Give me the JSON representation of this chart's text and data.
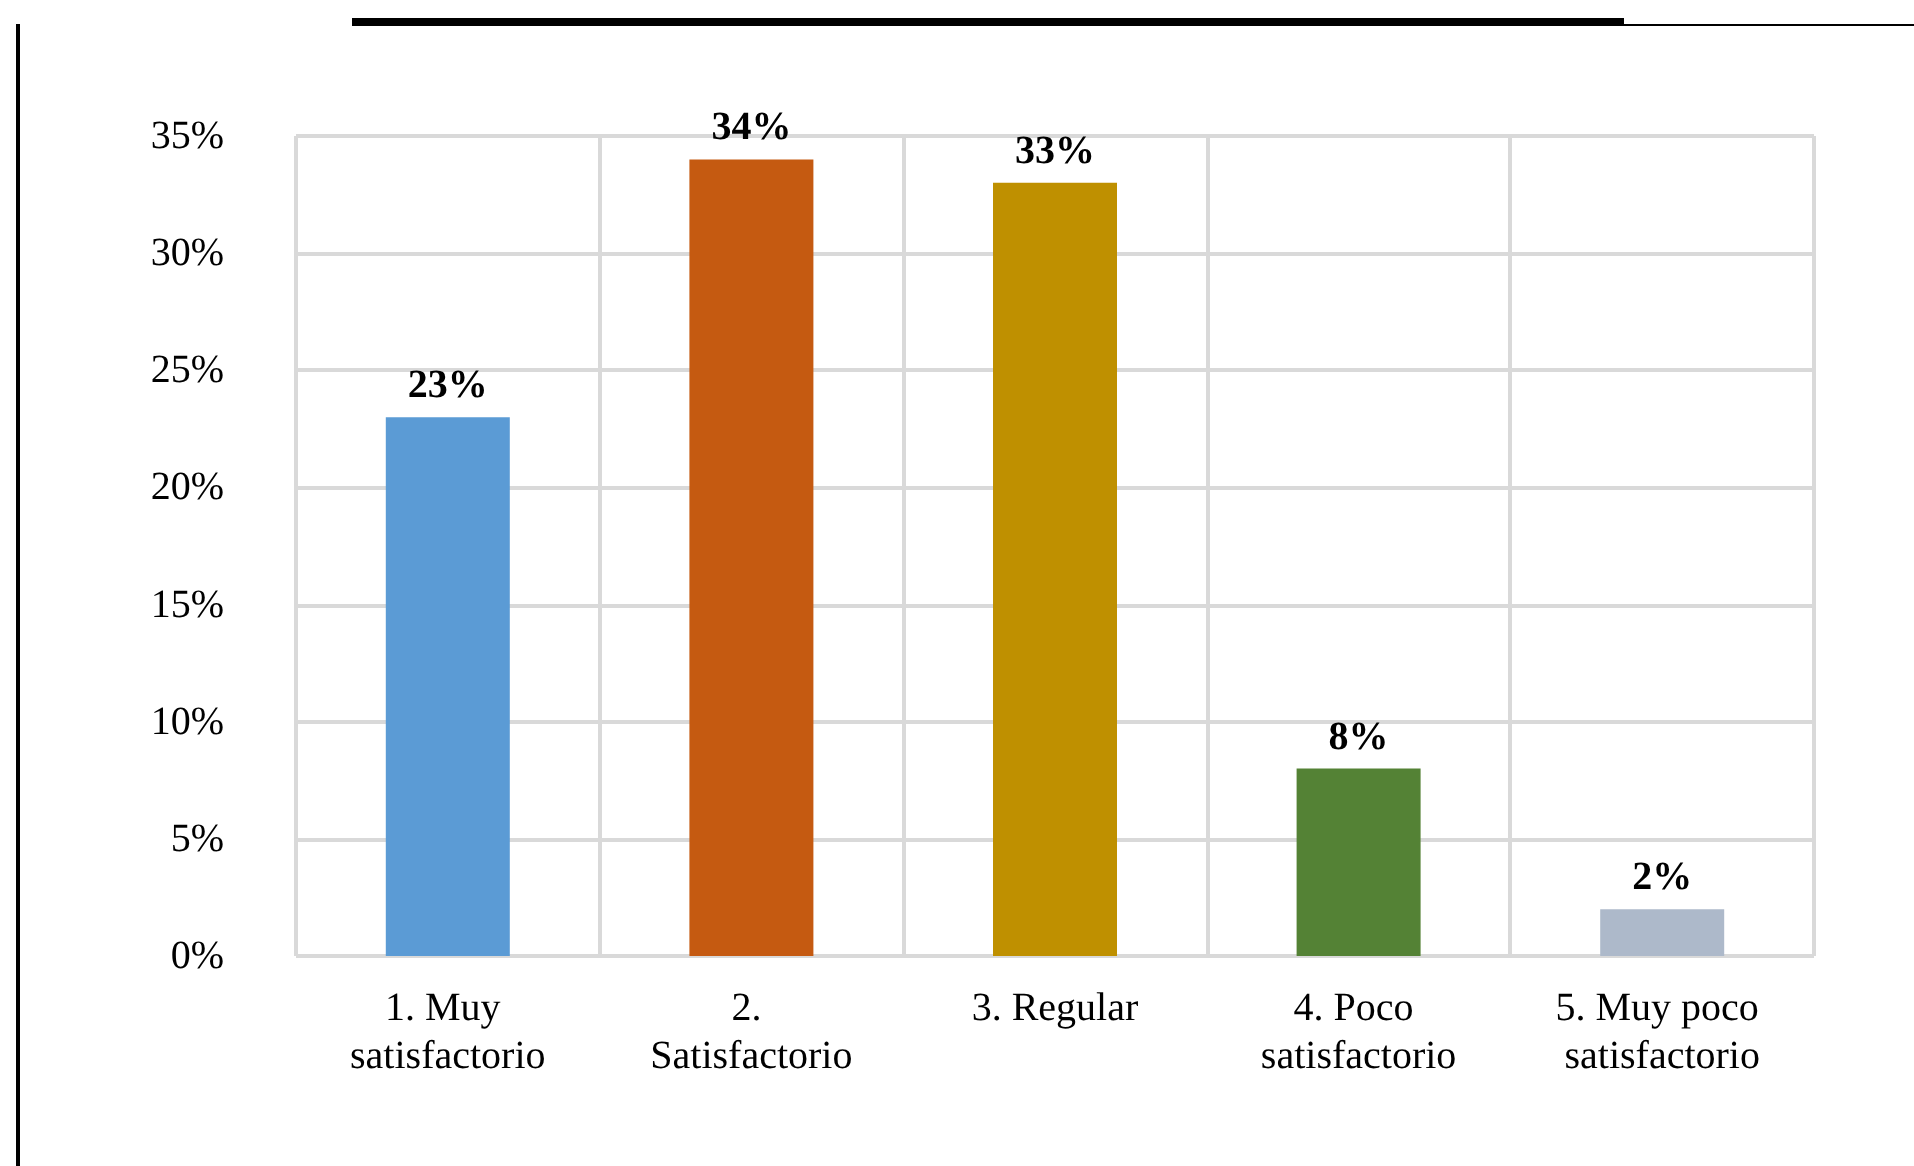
{
  "chart_data": {
    "type": "bar",
    "categories": [
      "1. Muy satisfactorio",
      "2. Satisfactorio",
      "3. Regular",
      "4. Poco satisfactorio",
      "5. Muy poco satisfactorio"
    ],
    "values": [
      23,
      34,
      33,
      8,
      2
    ],
    "colors": [
      "#5b9bd5",
      "#c55a11",
      "#bf9000",
      "#548235",
      "#adb9ca"
    ],
    "value_labels": [
      "23%",
      "34%",
      "33%",
      "8%",
      "2%"
    ],
    "ylim": [
      0,
      35
    ],
    "yticks": [
      {
        "value": 0,
        "label": "0%"
      },
      {
        "value": 5,
        "label": "5%"
      },
      {
        "value": 10,
        "label": "10%"
      },
      {
        "value": 15,
        "label": "15%"
      },
      {
        "value": 20,
        "label": "20%"
      },
      {
        "value": 25,
        "label": "25%"
      },
      {
        "value": 30,
        "label": "30%"
      },
      {
        "value": 35,
        "label": "35%"
      }
    ],
    "grid": true
  }
}
